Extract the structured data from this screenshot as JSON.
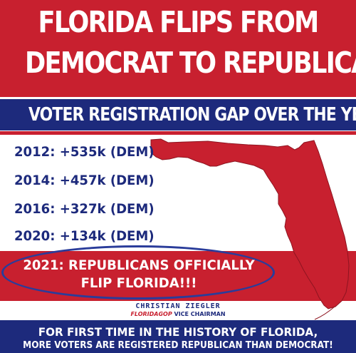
{
  "headline": {
    "line1": "FLORIDA FLIPS FROM",
    "line2": "DEMOCRAT TO REPUBLICAN!"
  },
  "subtitle": "VOTER REGISTRATION GAP OVER THE YEARS:",
  "gap_list": [
    {
      "text": "2012: +535k (DEM)"
    },
    {
      "text": "2014: +457k (DEM)"
    },
    {
      "text": "2016: +327k (DEM)"
    },
    {
      "text": "2020: +134k (DEM)"
    }
  ],
  "callout": {
    "line1": "2021: REPUBLICANS OFFICIALLY",
    "line2": "FLIP FLORIDA!!!"
  },
  "signature": {
    "name": "CHRISTIAN ZIEGLER",
    "brand": "FLORIDAGOP",
    "role": "VICE CHAIRMAN"
  },
  "footer": {
    "line1": "FOR FIRST TIME IN THE HISTORY OF FLORIDA,",
    "line2": "MORE VOTERS ARE REGISTERED REPUBLICAN THAN DEMOCRAT!"
  },
  "colors": {
    "red": "#c8202f",
    "navy": "#1d2a7c",
    "white": "#ffffff"
  },
  "icons": {
    "map": "florida-map-icon"
  }
}
